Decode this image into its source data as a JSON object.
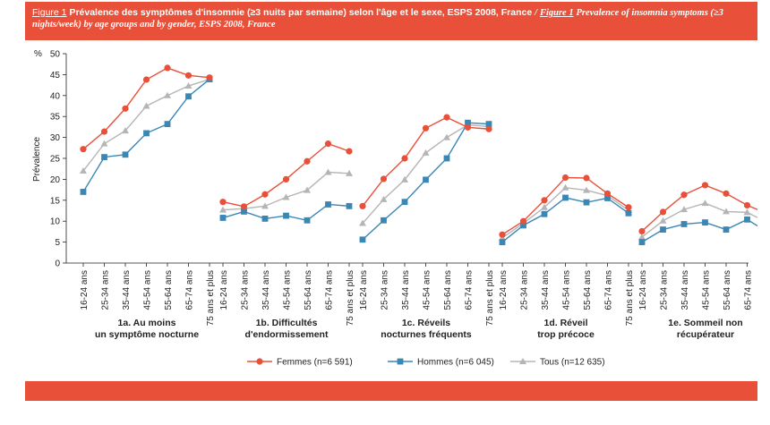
{
  "title": {
    "fr_label": "Figure 1",
    "fr_text": "Prévalence des symptômes d'insomnie (≥3 nuits par semaine) selon l'âge et le sexe, ESPS 2008, France",
    "separator": "/",
    "en_label": "Figure 1",
    "en_text": "Prevalence of insomnia symptoms (≥3 nights/week) by age groups and by gender, ESPS 2008, France"
  },
  "chart_data": {
    "type": "line",
    "ylabel": "Prévalence",
    "yunit": "%",
    "ylim": [
      0,
      50
    ],
    "yticks": [
      0,
      5,
      10,
      15,
      20,
      25,
      30,
      35,
      40,
      45,
      50
    ],
    "grid": false,
    "legend_position": "bottom",
    "categories": [
      "16-24 ans",
      "25-34 ans",
      "35-44 ans",
      "45-54 ans",
      "55-64 ans",
      "65-74 ans",
      "75 ans et plus"
    ],
    "colors": {
      "Femmes": "#e8503a",
      "Hommes": "#3a86b5",
      "Tous": "#b5b5b5"
    },
    "legend": [
      {
        "key": "Femmes",
        "label": "Femmes (n=6 591)"
      },
      {
        "key": "Hommes",
        "label": "Hommes (n=6 045)"
      },
      {
        "key": "Tous",
        "label": "Tous (n=12 635)"
      }
    ],
    "panels": [
      {
        "label_lines": [
          "1a. Au moins",
          "un symptôme nocturne"
        ],
        "series": [
          {
            "key": "Femmes",
            "values": [
              27.2,
              31.4,
              36.9,
              43.8,
              46.6,
              44.8,
              44.3
            ]
          },
          {
            "key": "Hommes",
            "values": [
              17.0,
              25.3,
              25.9,
              31.0,
              33.2,
              39.8,
              43.9
            ]
          },
          {
            "key": "Tous",
            "values": [
              22.0,
              28.5,
              31.6,
              37.5,
              40.0,
              42.3,
              43.9
            ]
          }
        ]
      },
      {
        "label_lines": [
          "1b. Difficultés",
          "d'endormissement"
        ],
        "series": [
          {
            "key": "Femmes",
            "values": [
              14.6,
              13.5,
              16.4,
              20.0,
              24.3,
              28.5,
              26.7
            ]
          },
          {
            "key": "Hommes",
            "values": [
              10.8,
              12.3,
              10.6,
              11.3,
              10.2,
              14.0,
              13.6
            ]
          },
          {
            "key": "Tous",
            "values": [
              12.7,
              13.0,
              13.6,
              15.7,
              17.4,
              21.7,
              21.4
            ]
          }
        ]
      },
      {
        "label_lines": [
          "1c. Réveils",
          "nocturnes fréquents"
        ],
        "series": [
          {
            "key": "Femmes",
            "values": [
              13.6,
              20.1,
              25.0,
              32.2,
              34.8,
              32.4,
              32.0
            ]
          },
          {
            "key": "Hommes",
            "values": [
              5.6,
              10.2,
              14.6,
              19.9,
              25.0,
              33.5,
              33.2
            ]
          },
          {
            "key": "Tous",
            "values": [
              9.5,
              15.2,
              19.9,
              26.3,
              30.0,
              33.0,
              32.6
            ]
          }
        ]
      },
      {
        "label_lines": [
          "1d. Réveil",
          "trop précoce"
        ],
        "series": [
          {
            "key": "Femmes",
            "values": [
              6.8,
              10.0,
              15.0,
              20.4,
              20.3,
              16.6,
              13.3
            ]
          },
          {
            "key": "Hommes",
            "values": [
              5.0,
              9.0,
              11.7,
              15.6,
              14.5,
              15.5,
              11.9
            ]
          },
          {
            "key": "Tous",
            "values": [
              6.0,
              9.5,
              13.3,
              18.0,
              17.4,
              16.1,
              12.6
            ]
          }
        ]
      },
      {
        "label_lines": [
          "1e. Sommeil non",
          "récupérateur"
        ],
        "series": [
          {
            "key": "Femmes",
            "values": [
              7.6,
              12.2,
              16.3,
              18.6,
              16.6,
              13.8,
              11.7
            ]
          },
          {
            "key": "Hommes",
            "values": [
              5.0,
              8.0,
              9.3,
              9.7,
              8.0,
              10.4,
              7.3
            ]
          },
          {
            "key": "Tous",
            "values": [
              6.2,
              10.1,
              12.8,
              14.3,
              12.3,
              12.1,
              9.6
            ]
          }
        ]
      }
    ]
  }
}
